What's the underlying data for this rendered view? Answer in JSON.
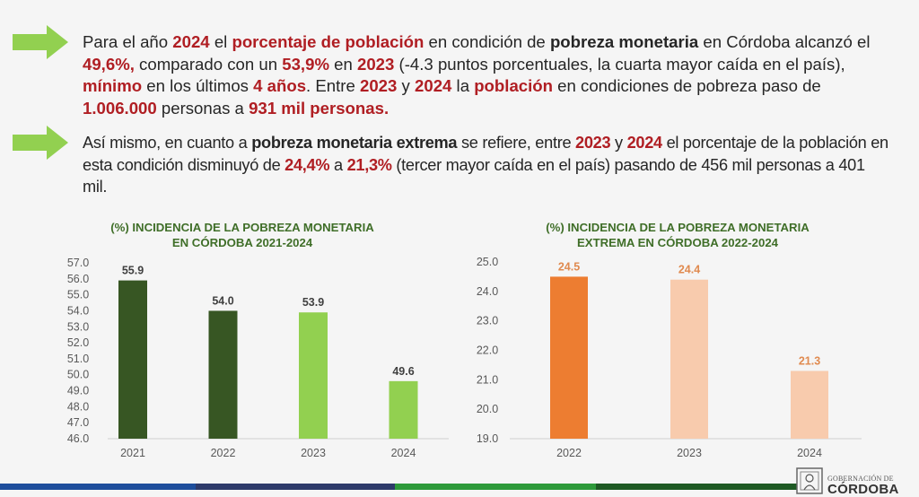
{
  "bullets": [
    {
      "icon": "arrow-right-icon",
      "segments": [
        {
          "t": "Para el año ",
          "s": "n"
        },
        {
          "t": "2024",
          "s": "r"
        },
        {
          "t": " el ",
          "s": "n"
        },
        {
          "t": "porcentaje de población",
          "s": "r"
        },
        {
          "t": " en condición de ",
          "s": "n"
        },
        {
          "t": "pobreza monetaria",
          "s": "b"
        },
        {
          "t": " en Córdoba alcanzó el ",
          "s": "n"
        },
        {
          "t": "49,6%,",
          "s": "r"
        },
        {
          "t": " comparado con un ",
          "s": "n"
        },
        {
          "t": "53,9%",
          "s": "r"
        },
        {
          "t": " en ",
          "s": "n"
        },
        {
          "t": "2023",
          "s": "r"
        },
        {
          "t": " (-4.3 puntos porcentuales, la cuarta mayor caída en el país), ",
          "s": "n"
        },
        {
          "t": "mínimo",
          "s": "r"
        },
        {
          "t": " en los últimos ",
          "s": "n"
        },
        {
          "t": "4 años",
          "s": "r"
        },
        {
          "t": ". Entre ",
          "s": "n"
        },
        {
          "t": "2023",
          "s": "r"
        },
        {
          "t": " y ",
          "s": "n"
        },
        {
          "t": "2024",
          "s": "r"
        },
        {
          "t": " la ",
          "s": "n"
        },
        {
          "t": "población",
          "s": "r"
        },
        {
          "t": " en condiciones de pobreza paso de ",
          "s": "n"
        },
        {
          "t": "1.006.000",
          "s": "r"
        },
        {
          "t": " personas a ",
          "s": "n"
        },
        {
          "t": "931 mil personas.",
          "s": "r"
        }
      ]
    },
    {
      "icon": "arrow-right-icon",
      "segments": [
        {
          "t": "Así mismo, en cuanto a ",
          "s": "n"
        },
        {
          "t": "pobreza monetaria extrema",
          "s": "b"
        },
        {
          "t": " se refiere, entre ",
          "s": "n"
        },
        {
          "t": "2023",
          "s": "r"
        },
        {
          "t": " y ",
          "s": "n"
        },
        {
          "t": "2024",
          "s": "r"
        },
        {
          "t": " el porcentaje de la población en esta condición disminuyó de ",
          "s": "n"
        },
        {
          "t": "24,4%",
          "s": "r"
        },
        {
          "t": " a ",
          "s": "n"
        },
        {
          "t": "21,3%",
          "s": "r"
        },
        {
          "t": " (tercer mayor caída en el país) pasando de 456 mil personas a 401 mil.",
          "s": "n"
        }
      ]
    }
  ],
  "colors": {
    "arrow": "#92d050",
    "highlight": "#b01e23",
    "title_green": "#3f6e28"
  },
  "chart_data": [
    {
      "type": "bar",
      "title": "(%) INCIDENCIA DE LA POBREZA MONETARIA EN CÓRDOBA 2021-2024",
      "title_lines": [
        "(%) INCIDENCIA DE LA POBREZA MONETARIA",
        "EN CÓRDOBA 2021-2024"
      ],
      "categories": [
        "2021",
        "2022",
        "2023",
        "2024"
      ],
      "values": [
        55.9,
        54.0,
        53.9,
        49.6
      ],
      "value_labels": [
        "55.9",
        "54.0",
        "53.9",
        "49.6"
      ],
      "bar_colors": [
        "#375623",
        "#375623",
        "#92d050",
        "#92d050"
      ],
      "label_color": "#404040",
      "ylim": [
        46,
        57
      ],
      "yticks": [
        "46.0",
        "47.0",
        "48.0",
        "49.0",
        "50.0",
        "51.0",
        "52.0",
        "53.0",
        "54.0",
        "55.0",
        "56.0",
        "57.0"
      ],
      "xlabel": "",
      "ylabel": "",
      "grid": false,
      "legend": "none"
    },
    {
      "type": "bar",
      "title": "(%) INCIDENCIA DE LA POBREZA MONETARIA EXTREMA EN CÓRDOBA 2022-2024",
      "title_lines": [
        "(%) INCIDENCIA DE LA POBREZA MONETARIA",
        "EXTREMA EN CÓRDOBA 2022-2024"
      ],
      "categories": [
        "2022",
        "2023",
        "2024"
      ],
      "values": [
        24.5,
        24.4,
        21.3
      ],
      "value_labels": [
        "24.5",
        "24.4",
        "21.3"
      ],
      "bar_colors": [
        "#ed7d31",
        "#f8cbad",
        "#f8cbad"
      ],
      "label_color": "#e08a4f",
      "ylim": [
        19,
        25
      ],
      "yticks": [
        "19.0",
        "20.0",
        "21.0",
        "22.0",
        "23.0",
        "24.0",
        "25.0"
      ],
      "xlabel": "",
      "ylabel": "",
      "grid": false,
      "legend": "none"
    }
  ],
  "footer": {
    "stripe_colors": [
      "#1e4e9c",
      "#2e3a6a",
      "#2e9a3a",
      "#1e5a24"
    ],
    "logo_small": "GOBERNACIÓN DE",
    "logo_big": "CÓRDOBA"
  }
}
